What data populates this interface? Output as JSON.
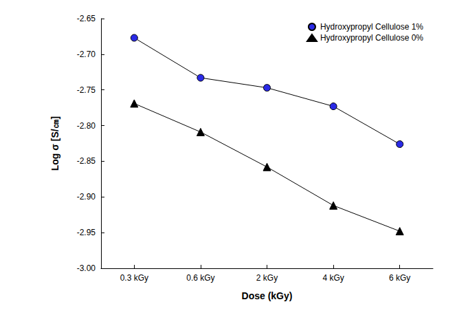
{
  "chart_data": {
    "type": "line",
    "x_label": "Dose (kGy)",
    "y_label": "Log σ [S/㎝]",
    "categories": [
      "0.3 kGy",
      "0.6 kGy",
      "2 kGy",
      "4 kGy",
      "6 kGy"
    ],
    "series": [
      {
        "name": "Hydroxypropyl Cellulose 1%",
        "color": "#2a2ae6",
        "marker": "circle",
        "values": [
          -2.677,
          -2.733,
          -2.747,
          -2.773,
          -2.826
        ]
      },
      {
        "name": "Hydroxypropyl Cellulose 0%",
        "color": "#000000",
        "marker": "triangle",
        "values": [
          -2.769,
          -2.809,
          -2.858,
          -2.912,
          -2.948
        ]
      }
    ],
    "ylim": [
      -3.0,
      -2.65
    ],
    "yticks": [
      {
        "value": -3.0,
        "label": "-3.00"
      },
      -2.95,
      {
        "value": -2.9,
        "label": "-2.90"
      },
      -2.85,
      {
        "value": -2.8,
        "label": "-2.80"
      },
      -2.75,
      {
        "value": -2.7,
        "label": "-2.70"
      },
      -2.65
    ],
    "grid": false,
    "legend": "upper right"
  }
}
